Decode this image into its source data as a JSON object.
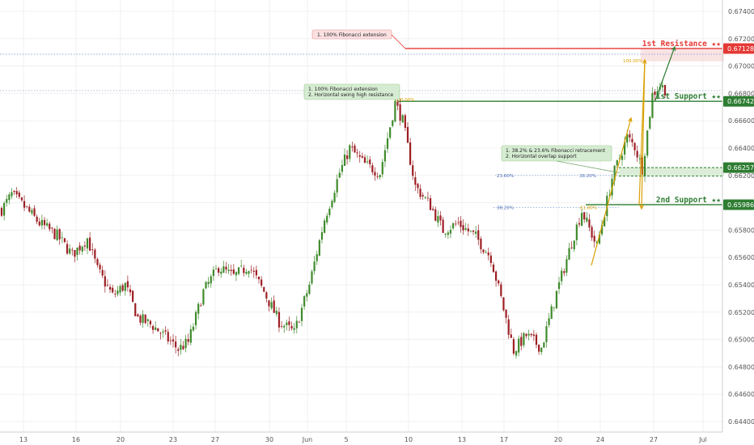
{
  "colors": {
    "up": "#3f8b2c",
    "down": "#9d1f24",
    "resistance": "#e53935",
    "support": "#2e7d32",
    "fib_arrow": "#d9a000",
    "grid": "#e8e8e8",
    "dotted_blue": "#6f8fd1"
  },
  "chart_data": {
    "type": "candlestick",
    "instrument_note": "intraday price chart with support/resistance annotations",
    "x_tick_labels": [
      "13",
      "16",
      "20",
      "23",
      "27",
      "30",
      "Jun",
      "5",
      "10",
      "13",
      "17",
      "20",
      "24",
      "27",
      "Jul"
    ],
    "y_tick_labels": [
      "0.67400",
      "0.67200",
      "0.67000",
      "0.66800",
      "0.66600",
      "0.66400",
      "0.66200",
      "0.66000",
      "0.65800",
      "0.65600",
      "0.65400",
      "0.65200",
      "0.65000",
      "0.64800",
      "0.64600",
      "0.64400"
    ],
    "ylim": [
      0.6437,
      0.675
    ],
    "close_path": [
      {
        "i": 0,
        "v": 0.6595
      },
      {
        "i": 4,
        "v": 0.6606
      },
      {
        "i": 9,
        "v": 0.6597
      },
      {
        "i": 15,
        "v": 0.6585
      },
      {
        "i": 22,
        "v": 0.6576
      },
      {
        "i": 28,
        "v": 0.6562
      },
      {
        "i": 34,
        "v": 0.6574
      },
      {
        "i": 38,
        "v": 0.6551
      },
      {
        "i": 44,
        "v": 0.6532
      },
      {
        "i": 49,
        "v": 0.654
      },
      {
        "i": 54,
        "v": 0.6516
      },
      {
        "i": 60,
        "v": 0.651
      },
      {
        "i": 66,
        "v": 0.65
      },
      {
        "i": 70,
        "v": 0.6493
      },
      {
        "i": 74,
        "v": 0.6498
      },
      {
        "i": 80,
        "v": 0.6535
      },
      {
        "i": 86,
        "v": 0.6553
      },
      {
        "i": 92,
        "v": 0.6546
      },
      {
        "i": 98,
        "v": 0.6554
      },
      {
        "i": 104,
        "v": 0.6535
      },
      {
        "i": 110,
        "v": 0.6513
      },
      {
        "i": 116,
        "v": 0.6505
      },
      {
        "i": 122,
        "v": 0.654
      },
      {
        "i": 128,
        "v": 0.6588
      },
      {
        "i": 134,
        "v": 0.6622
      },
      {
        "i": 138,
        "v": 0.664
      },
      {
        "i": 144,
        "v": 0.6628
      },
      {
        "i": 150,
        "v": 0.6622
      },
      {
        "i": 156,
        "v": 0.6673
      },
      {
        "i": 159,
        "v": 0.666
      },
      {
        "i": 164,
        "v": 0.6612
      },
      {
        "i": 170,
        "v": 0.6598
      },
      {
        "i": 175,
        "v": 0.658
      },
      {
        "i": 181,
        "v": 0.6585
      },
      {
        "i": 188,
        "v": 0.6575
      },
      {
        "i": 194,
        "v": 0.656
      },
      {
        "i": 198,
        "v": 0.653
      },
      {
        "i": 203,
        "v": 0.6492
      },
      {
        "i": 208,
        "v": 0.6503
      },
      {
        "i": 214,
        "v": 0.6494
      },
      {
        "i": 220,
        "v": 0.6534
      },
      {
        "i": 226,
        "v": 0.6571
      },
      {
        "i": 230,
        "v": 0.6594
      },
      {
        "i": 236,
        "v": 0.6568
      },
      {
        "i": 242,
        "v": 0.6618
      },
      {
        "i": 248,
        "v": 0.6648
      },
      {
        "i": 251,
        "v": 0.6641
      },
      {
        "i": 254,
        "v": 0.6625
      },
      {
        "i": 258,
        "v": 0.6679
      },
      {
        "i": 261,
        "v": 0.6686
      },
      {
        "i": 263,
        "v": 0.6683
      }
    ],
    "candle_count": 264,
    "levels": [
      {
        "value": 0.67128,
        "label": "1st Resistance ★★",
        "tag": "0.67128",
        "kind": "resistance"
      },
      {
        "value": 0.66742,
        "label": "1st Support ★★",
        "tag": "0.66742",
        "kind": "support"
      },
      {
        "value": 0.66257,
        "label": "",
        "tag": "0.66257",
        "kind": "support"
      },
      {
        "value": 0.65986,
        "label": "2nd Support ★★",
        "tag": "0.65986",
        "kind": "support"
      }
    ],
    "fib_labels": {
      "top_right": "100.00%",
      "mid_left": "100.00%",
      "r23": "23.60%",
      "r38a": "38.20%",
      "r38b": "38.20%",
      "r61": "61.80%"
    },
    "annotations": {
      "resistance_note": "1. 100% Fibonacci extension",
      "support1_note_1": "1. 100% Fibonacci extension",
      "support1_note_2": "2. Horizontal swing high resistance",
      "overlap_note_1": "1. 38.2% & 23.6% Fibonacci retracement",
      "overlap_note_2": "2. Horizontal overlap support"
    }
  }
}
